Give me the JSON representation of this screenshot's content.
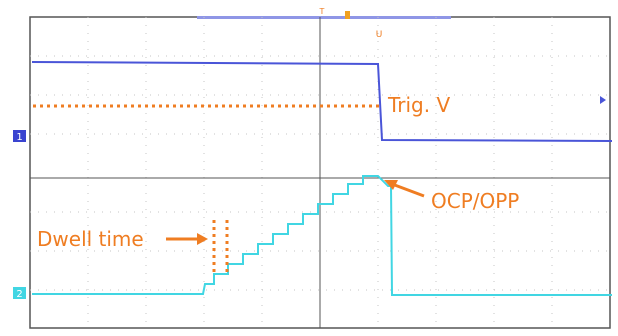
{
  "annotations": {
    "trig_label": "Trig. V",
    "ocp_label": "OCP/OPP",
    "dwell_label": "Dwell time"
  },
  "markers": {
    "ch1": "1",
    "ch2": "2",
    "trigger_top": "T",
    "trigger_u": "U"
  },
  "colors": {
    "channel1": "#4a55d8",
    "channel2": "#41d6e3",
    "annotation": "#ef7d22",
    "grid": "#b8b8b8",
    "frame": "#555555"
  }
}
